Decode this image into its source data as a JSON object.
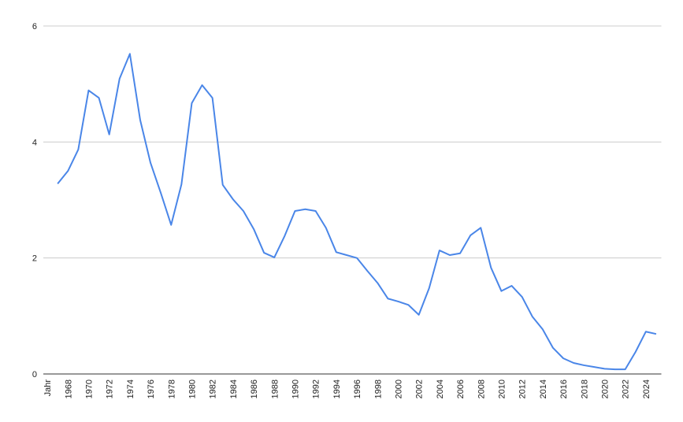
{
  "chart_data": {
    "type": "line",
    "categories": [
      "Jahr",
      null,
      "1968",
      null,
      "1970",
      null,
      "1972",
      null,
      "1974",
      null,
      "1976",
      null,
      "1978",
      null,
      "1980",
      null,
      "1982",
      null,
      "1984",
      null,
      "1986",
      null,
      "1988",
      null,
      "1990",
      null,
      "1992",
      null,
      "1994",
      null,
      "1996",
      null,
      "1998",
      null,
      "2000",
      null,
      "2002",
      null,
      "2004",
      null,
      "2006",
      null,
      "2008",
      null,
      "2010",
      null,
      "2012",
      null,
      "2014",
      null,
      "2016",
      null,
      "2018",
      null,
      "2020",
      null,
      "2022",
      null,
      "2024",
      null
    ],
    "series": [
      {
        "color": "#4a86e8",
        "values": [
          null,
          3.28,
          3.5,
          3.87,
          4.89,
          4.76,
          4.13,
          5.09,
          5.52,
          4.38,
          3.64,
          3.12,
          2.57,
          3.27,
          4.67,
          4.98,
          4.76,
          3.26,
          3.01,
          2.81,
          2.5,
          2.09,
          2.01,
          2.38,
          2.81,
          2.84,
          2.81,
          2.52,
          2.1,
          2.05,
          2.0,
          1.78,
          1.57,
          1.3,
          1.25,
          1.19,
          1.02,
          1.48,
          2.13,
          2.05,
          2.08,
          2.39,
          2.52,
          1.83,
          1.43,
          1.52,
          1.33,
          0.99,
          0.77,
          0.45,
          0.27,
          0.19,
          0.15,
          0.12,
          0.09,
          0.08,
          0.08,
          0.38,
          0.73,
          0.69
        ]
      }
    ],
    "ylim": [
      0,
      6
    ],
    "yticks": [
      0,
      2,
      4,
      6
    ],
    "grid": true
  }
}
